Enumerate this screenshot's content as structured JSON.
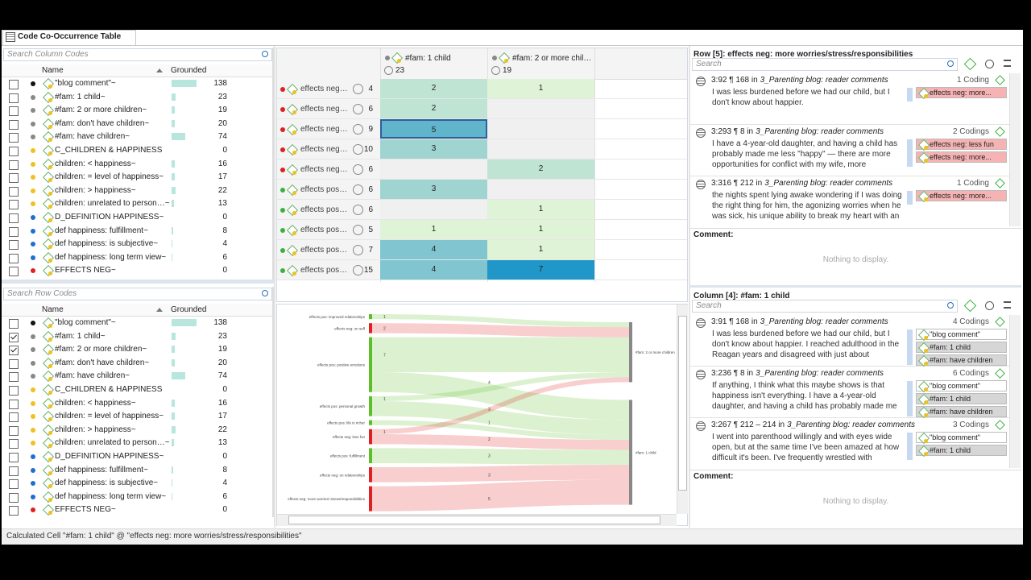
{
  "tab": "Code Co-Occurrence Table",
  "column_codes": {
    "search": "Search Column Codes",
    "headers": [
      "Name",
      "Grounded"
    ],
    "rows": [
      {
        "name": "\"blog comment\"~",
        "color": "#111111",
        "grounded": 138,
        "checked": false
      },
      {
        "name": "#fam: 1 child~",
        "color": "#888888",
        "grounded": 23,
        "checked": false
      },
      {
        "name": "#fam: 2 or more  children~",
        "color": "#888888",
        "grounded": 19,
        "checked": false
      },
      {
        "name": "#fam: don't have children~",
        "color": "#888888",
        "grounded": 20,
        "checked": false
      },
      {
        "name": "#fam: have children~",
        "color": "#888888",
        "grounded": 74,
        "checked": false
      },
      {
        "name": "C_CHILDREN & HAPPINESS",
        "color": "#f0c020",
        "grounded": 0,
        "checked": false
      },
      {
        "name": "children: < happiness~",
        "color": "#f0c020",
        "grounded": 16,
        "checked": false
      },
      {
        "name": "children: = level of happiness~",
        "color": "#f0c020",
        "grounded": 17,
        "checked": false
      },
      {
        "name": "children: > happiness~",
        "color": "#f0c020",
        "grounded": 22,
        "checked": false
      },
      {
        "name": "children: unrelated to person…~",
        "color": "#f0c020",
        "grounded": 13,
        "checked": false
      },
      {
        "name": "D_DEFINITION HAPPINESS~",
        "color": "#1f6fd0",
        "grounded": 0,
        "checked": false
      },
      {
        "name": "def happiness: fulfillment~",
        "color": "#1f6fd0",
        "grounded": 8,
        "checked": false
      },
      {
        "name": "def happiness: is subjective~",
        "color": "#1f6fd0",
        "grounded": 4,
        "checked": false
      },
      {
        "name": "def happiness: long term view~",
        "color": "#1f6fd0",
        "grounded": 6,
        "checked": false
      },
      {
        "name": "EFFECTS NEG~",
        "color": "#e02020",
        "grounded": 0,
        "checked": false
      }
    ]
  },
  "row_codes": {
    "search": "Search Row Codes",
    "headers": [
      "Name",
      "Grounded"
    ],
    "rows": [
      {
        "name": "\"blog comment\"~",
        "color": "#111111",
        "grounded": 138,
        "checked": false
      },
      {
        "name": "#fam: 1 child~",
        "color": "#888888",
        "grounded": 23,
        "checked": true
      },
      {
        "name": "#fam: 2 or more  children~",
        "color": "#888888",
        "grounded": 19,
        "checked": true
      },
      {
        "name": "#fam: don't have children~",
        "color": "#888888",
        "grounded": 20,
        "checked": false
      },
      {
        "name": "#fam: have children~",
        "color": "#888888",
        "grounded": 74,
        "checked": false
      },
      {
        "name": "C_CHILDREN & HAPPINESS",
        "color": "#f0c020",
        "grounded": 0,
        "checked": false
      },
      {
        "name": "children: < happiness~",
        "color": "#f0c020",
        "grounded": 16,
        "checked": false
      },
      {
        "name": "children: = level of happiness~",
        "color": "#f0c020",
        "grounded": 17,
        "checked": false
      },
      {
        "name": "children: > happiness~",
        "color": "#f0c020",
        "grounded": 22,
        "checked": false
      },
      {
        "name": "children: unrelated to person…~",
        "color": "#f0c020",
        "grounded": 13,
        "checked": false
      },
      {
        "name": "D_DEFINITION HAPPINESS~",
        "color": "#1f6fd0",
        "grounded": 0,
        "checked": false
      },
      {
        "name": "def happiness: fulfillment~",
        "color": "#1f6fd0",
        "grounded": 8,
        "checked": false
      },
      {
        "name": "def happiness: is subjective~",
        "color": "#1f6fd0",
        "grounded": 4,
        "checked": false
      },
      {
        "name": "def happiness: long term view~",
        "color": "#1f6fd0",
        "grounded": 6,
        "checked": false
      },
      {
        "name": "EFFECTS NEG~",
        "color": "#e02020",
        "grounded": 0,
        "checked": false
      }
    ]
  },
  "table": {
    "columns": [
      {
        "name": "#fam: 1 child",
        "color": "#888888",
        "count": 23
      },
      {
        "name": "#fam: 2 or more  chil…",
        "color": "#888888",
        "count": 19
      }
    ],
    "rows": [
      {
        "name": "effects neg…",
        "color": "#e02020",
        "count": 4,
        "cells": [
          2,
          1
        ]
      },
      {
        "name": "effects neg…",
        "color": "#e02020",
        "count": 6,
        "cells": [
          2,
          null
        ]
      },
      {
        "name": "effects neg…",
        "color": "#e02020",
        "count": 9,
        "cells": [
          5,
          null
        ]
      },
      {
        "name": "effects neg…",
        "color": "#e02020",
        "count": 10,
        "cells": [
          3,
          null
        ]
      },
      {
        "name": "effects neg…",
        "color": "#e02020",
        "count": 6,
        "cells": [
          null,
          2
        ]
      },
      {
        "name": "effects pos…",
        "color": "#3cb13c",
        "count": 6,
        "cells": [
          3,
          null
        ]
      },
      {
        "name": "effects pos…",
        "color": "#3cb13c",
        "count": 6,
        "cells": [
          null,
          1
        ]
      },
      {
        "name": "effects pos…",
        "color": "#3cb13c",
        "count": 5,
        "cells": [
          1,
          1
        ]
      },
      {
        "name": "effects pos…",
        "color": "#3cb13c",
        "count": 7,
        "cells": [
          4,
          1
        ]
      },
      {
        "name": "effects pos…",
        "color": "#3cb13c",
        "count": 15,
        "cells": [
          4,
          7
        ]
      }
    ],
    "selected": [
      2,
      0
    ]
  },
  "sankey": {
    "sources": [
      {
        "name": "effects pos: improved relationships",
        "color": "#5cbf2a"
      },
      {
        "name": "effects neg: on self",
        "color": "#e02020"
      },
      {
        "name": "effects pos: positive emotions",
        "color": "#5cbf2a"
      },
      {
        "name": "effects pos: personal growth",
        "color": "#5cbf2a"
      },
      {
        "name": "effects pos: life is richer",
        "color": "#5cbf2a"
      },
      {
        "name": "effects neg: less fun",
        "color": "#e02020"
      },
      {
        "name": "effects pos: fulfillment",
        "color": "#5cbf2a"
      },
      {
        "name": "effects neg: on relationships",
        "color": "#e02020"
      },
      {
        "name": "effects neg: more worries/ stress/responsibilities",
        "color": "#e02020"
      }
    ],
    "targets": [
      {
        "name": "#fam: 2 or more children"
      },
      {
        "name": "#fam: 1 child"
      }
    ],
    "flows": [
      {
        "source": 0,
        "target": 0,
        "value": 1
      },
      {
        "source": 1,
        "target": 0,
        "value": 2
      },
      {
        "source": 2,
        "target": 0,
        "value": 7
      },
      {
        "source": 2,
        "target": 1,
        "value": 4
      },
      {
        "source": 3,
        "target": 0,
        "value": 1
      },
      {
        "source": 3,
        "target": 1,
        "value": 3
      },
      {
        "source": 4,
        "target": 1,
        "value": 1
      },
      {
        "source": 5,
        "target": 0,
        "value": 1
      },
      {
        "source": 5,
        "target": 1,
        "value": 2
      },
      {
        "source": 6,
        "target": 1,
        "value": 3
      },
      {
        "source": 7,
        "target": 1,
        "value": 3
      },
      {
        "source": 8,
        "target": 1,
        "value": 5
      }
    ]
  },
  "row_panel": {
    "title": "Row [5]: effects neg: more worries/stress/responsibilities",
    "search": "Search",
    "quotes": [
      {
        "id": "3:92 ¶ 168 in",
        "doc": "3_Parenting blog: reader comments",
        "codings": "1 Coding",
        "text": "I was less burdened before we had our child, but I don't know about happier.",
        "codes": [
          {
            "name": "effects neg: more...",
            "color": "#f6b3b3"
          }
        ]
      },
      {
        "id": "3:293 ¶ 8 in",
        "doc": "3_Parenting blog: reader comments",
        "codings": "2 Codings",
        "text": "I have a 4-year-old daughter, and having a child has probably made me less \"happy\" — there are more opportunities for conflict with my wife, more financial...",
        "codes": [
          {
            "name": "effects neg: less fun",
            "color": "#f6b3b3"
          },
          {
            "name": "effects neg: more...",
            "color": "#f6b3b3"
          }
        ]
      },
      {
        "id": "3:316 ¶ 212 in",
        "doc": "3_Parenting blog: reader comments",
        "codings": "1 Coding",
        "text": "the nights spent lying awake wondering if I was doing the right thing for him, the agonizing worries when he was sick, his unique ability to break my heart with an a...",
        "codes": [
          {
            "name": "effects neg: more...",
            "color": "#f6b3b3"
          }
        ]
      }
    ],
    "comment_label": "Comment:",
    "comment_empty": "Nothing to display."
  },
  "column_panel": {
    "title": "Column [4]: #fam: 1 child",
    "search": "Search",
    "quotes": [
      {
        "id": "3:91 ¶ 168 in",
        "doc": "3_Parenting blog: reader comments",
        "codings": "4 Codings",
        "text": "I was less burdened before we had our child, but I don't know about happier. I reached adulthood in the Reagan years and disagreed with just about everything the Gi...",
        "codes": [
          {
            "name": "\"blog comment\"",
            "color": "#ffffff"
          },
          {
            "name": "#fam: 1 child",
            "color": "#d6d6d6"
          },
          {
            "name": "#fam: have children",
            "color": "#d6d6d6"
          }
        ]
      },
      {
        "id": "3:236 ¶ 8 in",
        "doc": "3_Parenting blog: reader comments",
        "codings": "6 Codings",
        "text": "If anything, I think what this maybe shows is that happiness isn't everything. I have a 4-year-old daughter, and having a child has probably made me less \"happ...",
        "codes": [
          {
            "name": "\"blog comment\"",
            "color": "#ffffff"
          },
          {
            "name": "#fam: 1 child",
            "color": "#d6d6d6"
          },
          {
            "name": "#fam: have children",
            "color": "#d6d6d6"
          }
        ]
      },
      {
        "id": "3:267 ¶ 212 – 214 in",
        "doc": "3_Parenting blog: reader comments",
        "codings": "3 Codings",
        "text": "I went into parenthood willingly and with eyes wide open, but at the same time I've been amazed at how difficult it's been. I've frequently wrestled with unhapp...",
        "codes": [
          {
            "name": "\"blog comment\"",
            "color": "#ffffff"
          },
          {
            "name": "#fam: 1 child",
            "color": "#d6d6d6"
          }
        ]
      }
    ],
    "comment_label": "Comment:",
    "comment_empty": "Nothing to display."
  },
  "status": "Calculated Cell \"#fam: 1 child\" @ \"effects neg: more worries/stress/responsibilities\""
}
